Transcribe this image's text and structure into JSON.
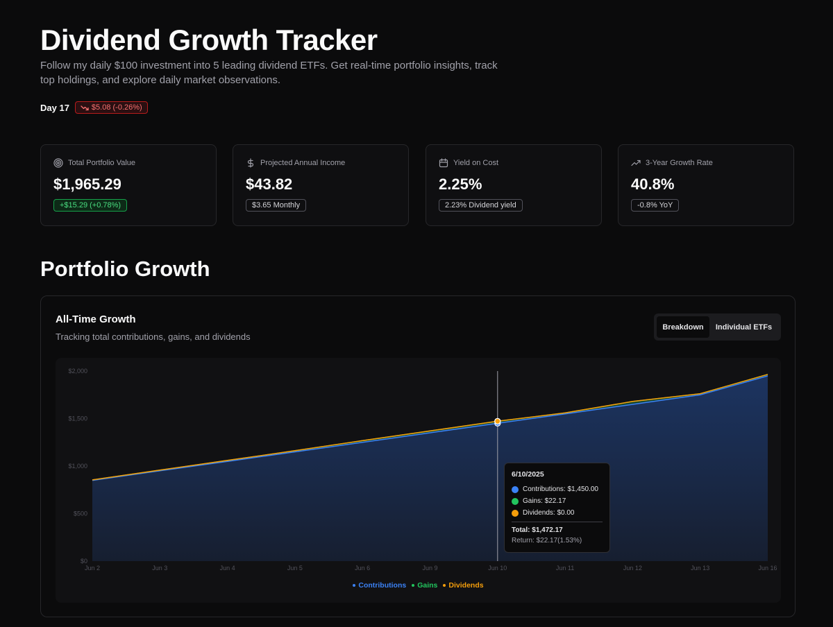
{
  "header": {
    "title": "Dividend Growth Tracker",
    "subtitle": "Follow my daily $100 investment into 5 leading dividend ETFs. Get real-time portfolio insights, track top holdings, and explore daily market observations.",
    "day_label": "Day 17",
    "day_change": "$5.08 (-0.26%)",
    "day_change_color": "#f87171"
  },
  "stats": [
    {
      "icon": "target-icon",
      "label": "Total Portfolio Value",
      "value": "$1,965.29",
      "badge": "+$15.29 (+0.78%)"
    },
    {
      "icon": "dollar-icon",
      "label": "Projected Annual Income",
      "value": "$43.82",
      "badge": "$3.65 Monthly"
    },
    {
      "icon": "calendar-icon",
      "label": "Yield on Cost",
      "value": "2.25%",
      "badge": "2.23% Dividend yield"
    },
    {
      "icon": "trending-up-icon",
      "label": "3-Year Growth Rate",
      "value": "40.8%",
      "badge": "-0.8% YoY"
    }
  ],
  "section_title": "Portfolio Growth",
  "chart_card": {
    "title": "All-Time Growth",
    "description": "Tracking total contributions, gains, and dividends",
    "toggle": {
      "active": "Breakdown",
      "inactive": "Individual ETFs"
    }
  },
  "tooltip": {
    "date": "6/10/2025",
    "contributions": "Contributions: $1,450.00",
    "gains": "Gains: $22.17",
    "dividends": "Dividends: $0.00",
    "total": "Total: $1,472.17",
    "return": "Return: $22.17(1.53%)"
  },
  "chart_data": {
    "type": "area",
    "x": [
      "Jun 2",
      "Jun 3",
      "Jun 4",
      "Jun 5",
      "Jun 6",
      "Jun 9",
      "Jun 10",
      "Jun 11",
      "Jun 12",
      "Jun 13",
      "Jun 16"
    ],
    "series": [
      {
        "name": "Contributions",
        "color": "#3b82f6",
        "values": [
          850,
          950,
          1050,
          1150,
          1250,
          1350,
          1450,
          1550,
          1650,
          1750,
          1950
        ]
      },
      {
        "name": "Gains",
        "color": "#22c55e",
        "values": [
          5,
          8,
          10,
          12,
          18,
          20,
          22.17,
          10,
          30,
          12,
          15.29
        ]
      },
      {
        "name": "Dividends",
        "color": "#f59e0b",
        "values": [
          0,
          0,
          0,
          0,
          0,
          0,
          0,
          0,
          0,
          0,
          0
        ]
      }
    ],
    "y_ticks": [
      "$0",
      "$500",
      "$1,000",
      "$1,500",
      "$2,000"
    ],
    "ylim": [
      0,
      2000
    ],
    "highlighted_x": "Jun 10",
    "legend_position": "bottom-center",
    "grid": false
  }
}
